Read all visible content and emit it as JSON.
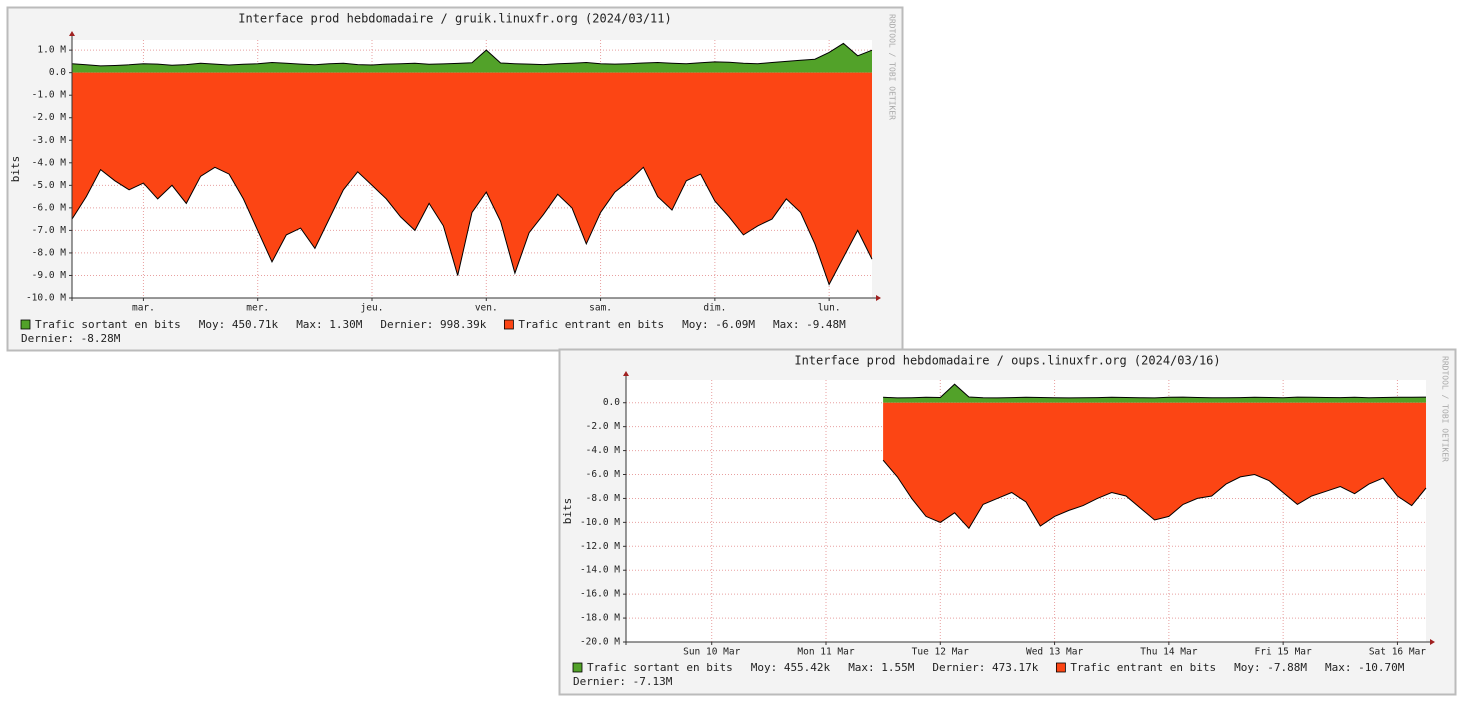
{
  "chart_data": [
    {
      "type": "area",
      "title": "Interface prod hebdomadaire / gruik.linuxfr.org (2024/03/11)",
      "y_label": "bits",
      "credit": "RRDTOOL / TOBI OETIKER",
      "xlim": [
        0,
        168
      ],
      "xticks": [
        {
          "value": 15,
          "label": "mar."
        },
        {
          "value": 39,
          "label": "mer."
        },
        {
          "value": 63,
          "label": "jeu."
        },
        {
          "value": 87,
          "label": "ven."
        },
        {
          "value": 111,
          "label": "sam."
        },
        {
          "value": 135,
          "label": "dim."
        },
        {
          "value": 159,
          "label": "lun."
        }
      ],
      "ylim": [
        -10,
        1.45
      ],
      "yticks": [
        {
          "value": 1,
          "label": "1.0 M"
        },
        {
          "value": 0,
          "label": "0.0"
        },
        {
          "value": -1,
          "label": "-1.0 M"
        },
        {
          "value": -2,
          "label": "-2.0 M"
        },
        {
          "value": -3,
          "label": "-3.0 M"
        },
        {
          "value": -4,
          "label": "-4.0 M"
        },
        {
          "value": -5,
          "label": "-5.0 M"
        },
        {
          "value": -6,
          "label": "-6.0 M"
        },
        {
          "value": -7,
          "label": "-7.0 M"
        },
        {
          "value": -8,
          "label": "-8.0 M"
        },
        {
          "value": -9,
          "label": "-9.0 M"
        },
        {
          "value": -10,
          "label": "-10.0 M"
        }
      ],
      "grid": true,
      "x": [
        0,
        3,
        6,
        9,
        12,
        15,
        18,
        21,
        24,
        27,
        30,
        33,
        36,
        39,
        42,
        45,
        48,
        51,
        54,
        57,
        60,
        63,
        66,
        69,
        72,
        75,
        78,
        81,
        84,
        87,
        90,
        93,
        96,
        99,
        102,
        105,
        108,
        111,
        114,
        117,
        120,
        123,
        126,
        129,
        132,
        135,
        138,
        141,
        144,
        147,
        150,
        153,
        156,
        159,
        162,
        165,
        168
      ],
      "series": [
        {
          "name": "Trafic sortant en bits",
          "color": "#52a229",
          "stats": [
            "Moy: 450.71k",
            "Max: 1.30M",
            "Dernier: 998.39k"
          ],
          "values": [
            0.4,
            0.35,
            0.3,
            0.32,
            0.35,
            0.4,
            0.38,
            0.33,
            0.36,
            0.42,
            0.38,
            0.34,
            0.37,
            0.4,
            0.45,
            0.42,
            0.38,
            0.35,
            0.4,
            0.42,
            0.36,
            0.34,
            0.38,
            0.4,
            0.42,
            0.37,
            0.39,
            0.41,
            0.44,
            1.0,
            0.43,
            0.4,
            0.38,
            0.36,
            0.4,
            0.42,
            0.45,
            0.4,
            0.38,
            0.4,
            0.43,
            0.45,
            0.42,
            0.4,
            0.44,
            0.48,
            0.46,
            0.42,
            0.4,
            0.45,
            0.5,
            0.55,
            0.6,
            0.9,
            1.3,
            0.75,
            0.998
          ]
        },
        {
          "name": "Trafic entrant en bits",
          "color": "#fc4514",
          "stats": [
            "Moy: -6.09M",
            "Max: -9.48M",
            "Dernier: -8.28M"
          ],
          "values": [
            -6.5,
            -5.5,
            -4.3,
            -4.8,
            -5.2,
            -4.9,
            -5.6,
            -5.0,
            -5.8,
            -4.6,
            -4.2,
            -4.5,
            -5.6,
            -7.0,
            -8.4,
            -7.2,
            -6.9,
            -7.8,
            -6.5,
            -5.2,
            -4.4,
            -5.0,
            -5.6,
            -6.4,
            -7.0,
            -5.8,
            -6.8,
            -9.0,
            -6.2,
            -5.3,
            -6.6,
            -8.9,
            -7.1,
            -6.3,
            -5.4,
            -6.0,
            -7.6,
            -6.2,
            -5.3,
            -4.8,
            -4.2,
            -5.5,
            -6.1,
            -4.8,
            -4.5,
            -5.7,
            -6.4,
            -7.2,
            -6.8,
            -6.5,
            -5.6,
            -6.2,
            -7.6,
            -9.4,
            -8.2,
            -7.0,
            -8.28
          ]
        }
      ]
    },
    {
      "type": "area",
      "title": "Interface prod hebdomadaire / oups.linuxfr.org (2024/03/16)",
      "y_label": "bits",
      "credit": "RRDTOOL / TOBI OETIKER",
      "xlim": [
        0,
        168
      ],
      "xticks": [
        {
          "value": 18,
          "label": "Sun 10 Mar"
        },
        {
          "value": 42,
          "label": "Mon 11 Mar"
        },
        {
          "value": 66,
          "label": "Tue 12 Mar"
        },
        {
          "value": 90,
          "label": "Wed 13 Mar"
        },
        {
          "value": 114,
          "label": "Thu 14 Mar"
        },
        {
          "value": 138,
          "label": "Fri 15 Mar"
        },
        {
          "value": 162,
          "label": "Sat 16 Mar"
        }
      ],
      "ylim": [
        -20,
        1.9
      ],
      "yticks": [
        {
          "value": 0,
          "label": "0.0"
        },
        {
          "value": -2,
          "label": "-2.0 M"
        },
        {
          "value": -4,
          "label": "-4.0 M"
        },
        {
          "value": -6,
          "label": "-6.0 M"
        },
        {
          "value": -8,
          "label": "-8.0 M"
        },
        {
          "value": -10,
          "label": "-10.0 M"
        },
        {
          "value": -12,
          "label": "-12.0 M"
        },
        {
          "value": -14,
          "label": "-14.0 M"
        },
        {
          "value": -16,
          "label": "-16.0 M"
        },
        {
          "value": -18,
          "label": "-18.0 M"
        },
        {
          "value": -20,
          "label": "-20.0 M"
        }
      ],
      "grid": true,
      "x": [
        54,
        57,
        60,
        63,
        66,
        69,
        72,
        75,
        78,
        81,
        84,
        87,
        90,
        93,
        96,
        99,
        102,
        105,
        108,
        111,
        114,
        117,
        120,
        123,
        126,
        129,
        132,
        135,
        138,
        141,
        144,
        147,
        150,
        153,
        156,
        159,
        162,
        165,
        168
      ],
      "series": [
        {
          "name": "Trafic sortant en bits",
          "color": "#52a229",
          "stats": [
            "Moy: 455.42k",
            "Max: 1.55M",
            "Dernier: 473.17k"
          ],
          "values": [
            0.45,
            0.4,
            0.42,
            0.45,
            0.44,
            1.55,
            0.48,
            0.42,
            0.4,
            0.43,
            0.45,
            0.44,
            0.42,
            0.4,
            0.41,
            0.43,
            0.45,
            0.44,
            0.42,
            0.4,
            0.45,
            0.47,
            0.44,
            0.42,
            0.41,
            0.43,
            0.45,
            0.44,
            0.42,
            0.47,
            0.45,
            0.44,
            0.43,
            0.45,
            0.42,
            0.44,
            0.46,
            0.45,
            0.473
          ]
        },
        {
          "name": "Trafic entrant en bits",
          "color": "#fc4514",
          "stats": [
            "Moy: -7.88M",
            "Max: -10.70M",
            "Dernier: -7.13M"
          ],
          "values": [
            -4.8,
            -6.2,
            -8.0,
            -9.5,
            -10.0,
            -9.2,
            -10.5,
            -8.5,
            -8.0,
            -7.5,
            -8.3,
            -10.3,
            -9.5,
            -9.0,
            -8.6,
            -8.0,
            -7.5,
            -7.8,
            -8.8,
            -9.8,
            -9.5,
            -8.5,
            -8.0,
            -7.8,
            -6.8,
            -6.2,
            -6.0,
            -6.5,
            -7.5,
            -8.5,
            -7.8,
            -7.4,
            -7.0,
            -7.6,
            -6.8,
            -6.3,
            -7.8,
            -8.6,
            -7.13
          ]
        }
      ]
    }
  ]
}
